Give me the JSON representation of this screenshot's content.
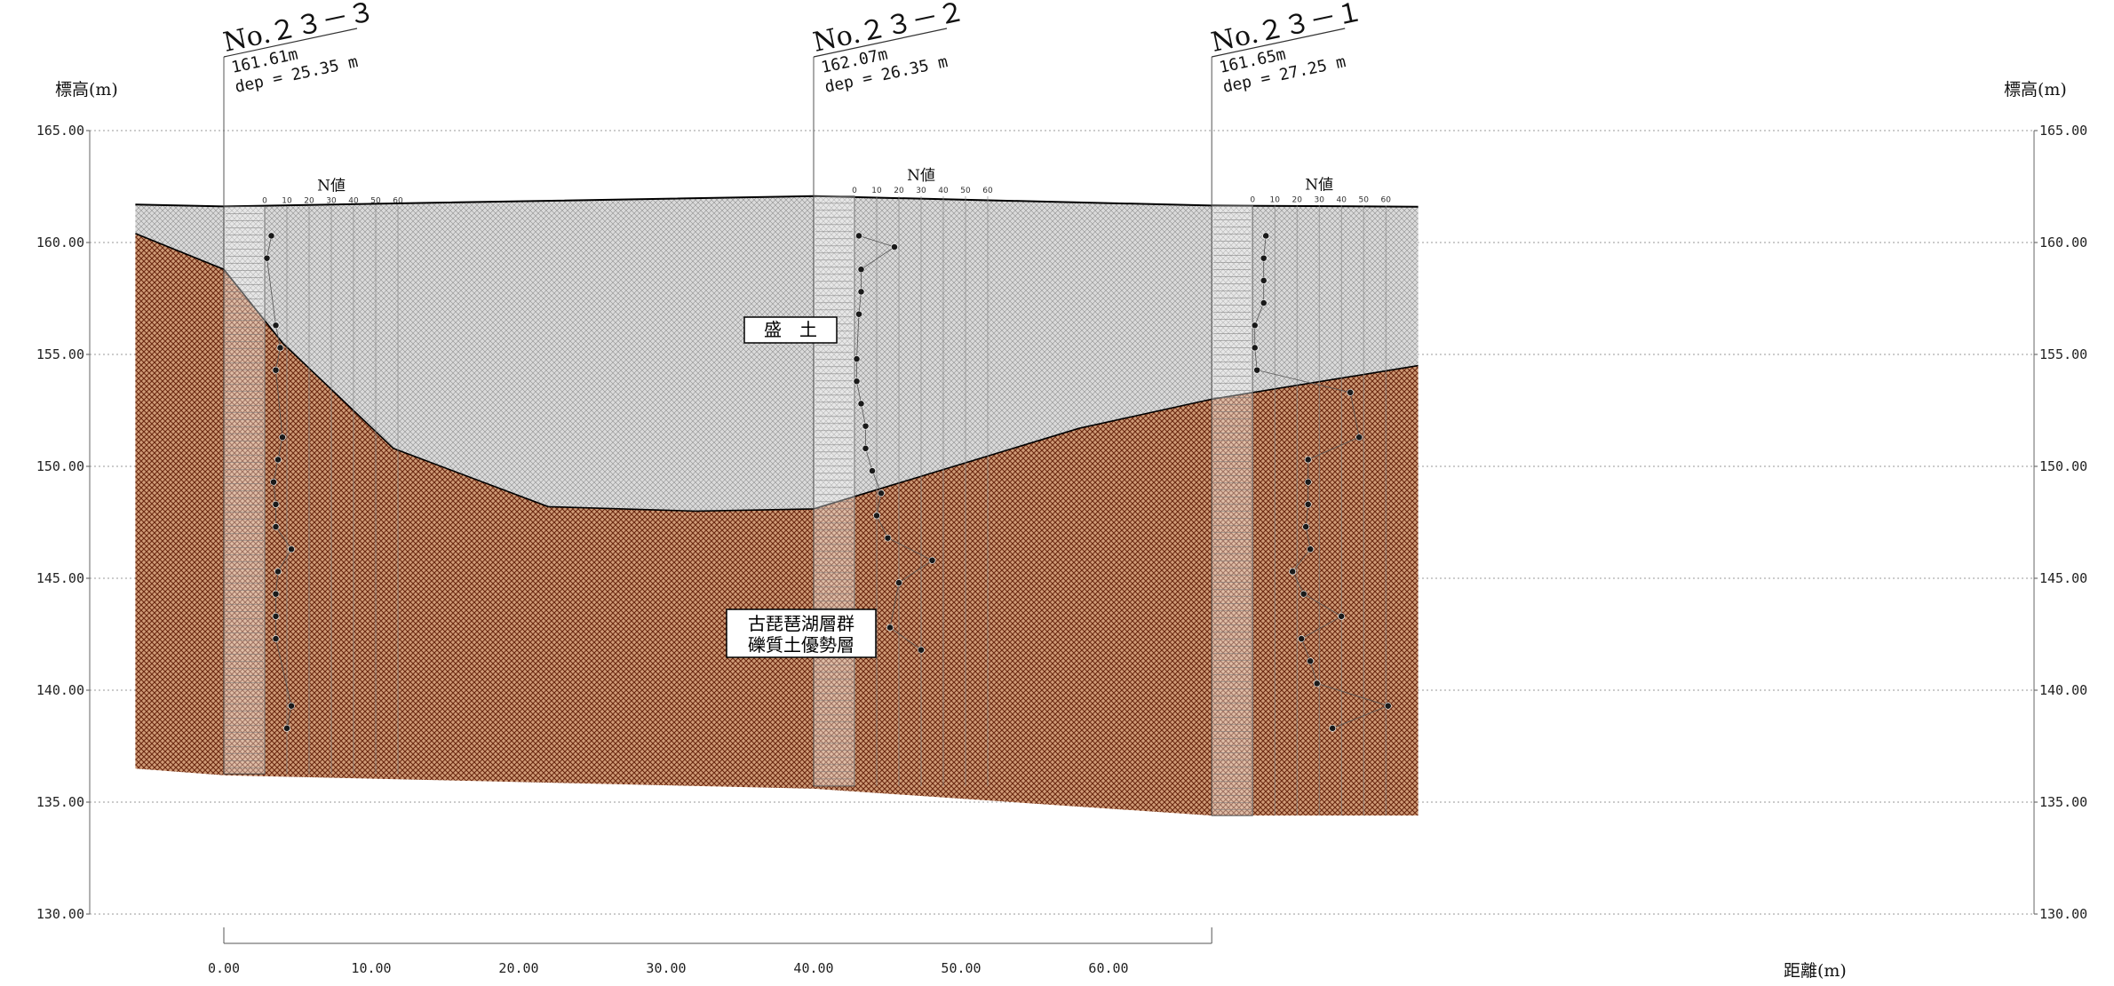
{
  "axes": {
    "elevation_title": "標高(m)",
    "distance_title": "距離(m)",
    "elevation_ticks": [
      "165.00",
      "160.00",
      "155.00",
      "150.00",
      "145.00",
      "140.00",
      "135.00",
      "130.00"
    ],
    "distance_ticks": [
      "0.00",
      "10.00",
      "20.00",
      "30.00",
      "40.00",
      "50.00",
      "60.00"
    ],
    "elevation_range": [
      130,
      165
    ],
    "distance_range": [
      -6,
      81
    ]
  },
  "boreholes": [
    {
      "name": "No.２３－３",
      "elevation_label": "161.61m",
      "depth_label": "dep = 25.35 m",
      "x": 0,
      "top": 161.61,
      "depth": 25.35,
      "n_values": [
        [
          160.3,
          3
        ],
        [
          159.3,
          1
        ],
        [
          156.3,
          5
        ],
        [
          155.3,
          7
        ],
        [
          154.3,
          5
        ],
        [
          151.3,
          8
        ],
        [
          150.3,
          6
        ],
        [
          149.3,
          4
        ],
        [
          148.3,
          5
        ],
        [
          147.3,
          5
        ],
        [
          146.3,
          12
        ],
        [
          145.3,
          6
        ],
        [
          144.3,
          5
        ],
        [
          143.3,
          5
        ],
        [
          142.3,
          5
        ],
        [
          139.3,
          12
        ],
        [
          138.3,
          10
        ]
      ]
    },
    {
      "name": "No.２３－２",
      "elevation_label": "162.07m",
      "depth_label": "dep = 26.35 m",
      "x": 40,
      "top": 162.07,
      "depth": 26.35,
      "n_values": [
        [
          160.3,
          2
        ],
        [
          159.8,
          18
        ],
        [
          158.8,
          3
        ],
        [
          157.8,
          3
        ],
        [
          156.8,
          2
        ],
        [
          154.8,
          1
        ],
        [
          153.8,
          1
        ],
        [
          152.8,
          3
        ],
        [
          151.8,
          5
        ],
        [
          150.8,
          5
        ],
        [
          149.8,
          8
        ],
        [
          148.8,
          12
        ],
        [
          147.8,
          10
        ],
        [
          146.8,
          15
        ],
        [
          145.8,
          35
        ],
        [
          144.8,
          20
        ],
        [
          142.8,
          16
        ],
        [
          141.8,
          30
        ]
      ]
    },
    {
      "name": "No.２３－１",
      "elevation_label": "161.65m",
      "depth_label": "dep = 27.25 m",
      "x": 67,
      "top": 161.65,
      "depth": 27.25,
      "n_values": [
        [
          160.3,
          6
        ],
        [
          159.3,
          5
        ],
        [
          158.3,
          5
        ],
        [
          157.3,
          5
        ],
        [
          156.3,
          1
        ],
        [
          155.3,
          1
        ],
        [
          154.3,
          2
        ],
        [
          153.3,
          44
        ],
        [
          151.3,
          48
        ],
        [
          150.3,
          25
        ],
        [
          149.3,
          25
        ],
        [
          148.3,
          25
        ],
        [
          147.3,
          24
        ],
        [
          146.3,
          26
        ],
        [
          145.3,
          18
        ],
        [
          144.3,
          23
        ],
        [
          143.3,
          40
        ],
        [
          142.3,
          22
        ],
        [
          141.3,
          26
        ],
        [
          140.3,
          29
        ],
        [
          139.3,
          61
        ],
        [
          138.3,
          36
        ]
      ]
    }
  ],
  "n_value_title": "N値",
  "n_value_ticks": [
    "0",
    "10",
    "20",
    "30",
    "40",
    "50",
    "60"
  ],
  "layers": [
    {
      "name": "fill",
      "label_lines": [
        "盛　土"
      ],
      "color": "#d9d9d9",
      "hatch": "#8c8c8c"
    },
    {
      "name": "gravel",
      "label_lines": [
        "古琵琶湖層群",
        "礫質土優勢層"
      ],
      "color": "#cf9a76",
      "hatch": "#6e2a10"
    }
  ],
  "surfaces": {
    "ground": [
      [
        -6,
        161.7
      ],
      [
        0,
        161.61
      ],
      [
        40,
        162.07
      ],
      [
        67,
        161.65
      ],
      [
        81,
        161.6
      ]
    ],
    "gravel_top": [
      [
        -6,
        160.4
      ],
      [
        0,
        158.8
      ],
      [
        4,
        155.5
      ],
      [
        11.5,
        150.8
      ],
      [
        22,
        148.2
      ],
      [
        32,
        148.0
      ],
      [
        40,
        148.1
      ],
      [
        48,
        149.7
      ],
      [
        58,
        151.7
      ],
      [
        67,
        153.0
      ],
      [
        81,
        154.5
      ]
    ],
    "model_bottom": [
      [
        -6,
        136.5
      ],
      [
        0,
        136.2
      ],
      [
        40,
        135.6
      ],
      [
        67,
        134.4
      ],
      [
        81,
        134.4
      ]
    ]
  }
}
